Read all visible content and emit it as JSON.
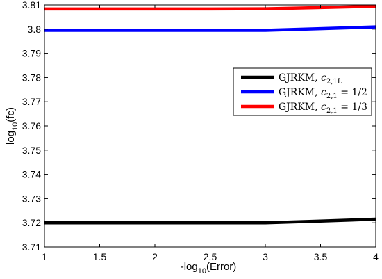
{
  "chart_data": {
    "type": "line",
    "xlabel_main": "-log",
    "xlabel_sub": "10",
    "xlabel_tail": "(Error)",
    "ylabel_main": "log",
    "ylabel_sub": "10",
    "ylabel_tail": "(fc)",
    "xlim": [
      1,
      4
    ],
    "ylim": [
      3.71,
      3.81
    ],
    "xticks": [
      1,
      1.5,
      2,
      2.5,
      3,
      3.5,
      4
    ],
    "xtick_labels": [
      "1",
      "1.5",
      "2",
      "2.5",
      "3",
      "3.5",
      "4"
    ],
    "yticks": [
      3.71,
      3.72,
      3.73,
      3.74,
      3.75,
      3.76,
      3.77,
      3.78,
      3.79,
      3.8,
      3.81
    ],
    "ytick_labels": [
      "3.71",
      "3.72",
      "3.73",
      "3.74",
      "3.75",
      "3.76",
      "3.77",
      "3.78",
      "3.79",
      "3.8",
      "3.81"
    ],
    "grid": false,
    "legend_position": "right",
    "series": [
      {
        "name": "GJRKM, c2,1L",
        "legend_main": "GJRKM,",
        "legend_var": "c",
        "legend_sub": "2,1L",
        "legend_tail": "",
        "color": "#000000",
        "x": [
          1,
          1.5,
          2,
          2.5,
          3,
          3.5,
          4
        ],
        "y": [
          3.72,
          3.72,
          3.72,
          3.72,
          3.72,
          3.7207,
          3.7215
        ]
      },
      {
        "name": "GJRKM, c2,1 = 1/2",
        "legend_main": "GJRKM,",
        "legend_var": "c",
        "legend_sub": "2,1",
        "legend_tail": " = 1/2",
        "color": "#0000ff",
        "x": [
          1,
          1.5,
          2,
          2.5,
          3,
          3.5,
          4
        ],
        "y": [
          3.7995,
          3.7995,
          3.7995,
          3.7995,
          3.7995,
          3.8002,
          3.8009
        ]
      },
      {
        "name": "GJRKM, c2,1 = 1/3",
        "legend_main": "GJRKM,",
        "legend_var": "c",
        "legend_sub": "2,1",
        "legend_tail": " = 1/3",
        "color": "#ff0000",
        "x": [
          1,
          1.5,
          2,
          2.5,
          3,
          3.5,
          4
        ],
        "y": [
          3.8083,
          3.8083,
          3.8083,
          3.8083,
          3.8084,
          3.8089,
          3.8094
        ]
      }
    ]
  }
}
